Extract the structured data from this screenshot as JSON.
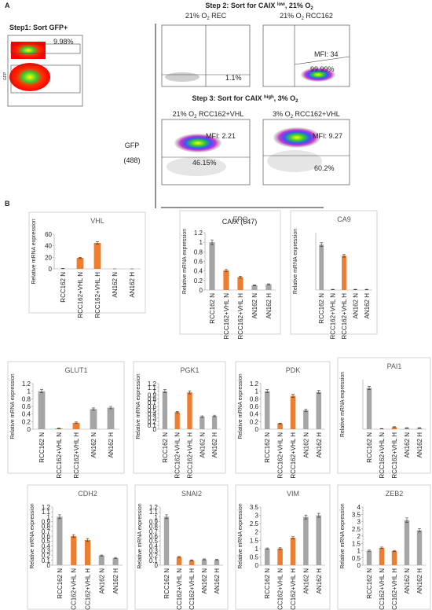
{
  "panel_a": {
    "label": "A",
    "step1": "Step1: Sort GFP+",
    "step1_pct": "9.98%",
    "step1_axis": "GFP",
    "step2": [
      "Step 2: Sort for CAIX ",
      "low",
      ", 21% O",
      "2"
    ],
    "plot1_title": [
      "21% O",
      "2",
      " REC"
    ],
    "plot1_pct": "1.1%",
    "plot2_title": [
      "21% O",
      "2",
      " RCC162"
    ],
    "plot2_mfi": "MFI: 34",
    "plot2_pct": "99.99%",
    "step3": [
      "Step 3: Sort for CAIX ",
      "high",
      ", 3% O",
      "2"
    ],
    "plot3_title": [
      "21% O",
      "2",
      " RCC162+VHL"
    ],
    "plot3_mfi": "MFI: 2.21",
    "plot3_pct": "46.15%",
    "plot4_title": [
      "3% O",
      "2",
      " RCC162+VHL"
    ],
    "plot4_mfi": "MFI: 9.27",
    "plot4_pct": "60.2%",
    "y_label": "GFP",
    "y_label_unit": "(488)",
    "x_label": "CAIX (647)"
  },
  "panel_b_label": "B",
  "chart_data": [
    {
      "type": "bar",
      "title": "VHL",
      "y_label": "Relative mRNA expression",
      "categories": [
        "RCC162 N",
        "RCC162+VHL N",
        "RCC162+VHL H",
        "AN162 N",
        "AN162 H"
      ],
      "values": [
        0.5,
        19,
        45,
        0,
        0
      ],
      "errors": [
        0.3,
        1,
        2,
        0,
        0
      ],
      "colors": [
        "#a5a5a5",
        "#ed7d31",
        "#ed7d31",
        "#a5a5a5",
        "#a5a5a5"
      ],
      "ylim": [
        0,
        60
      ],
      "yticks": [
        0,
        20,
        40,
        60
      ]
    },
    {
      "type": "bar",
      "title": "EPO",
      "y_label": "Relative mRNA expression",
      "categories": [
        "RCC162 N",
        "RCC162+VHL N",
        "RCC162+VHL H",
        "AN162 N",
        "AN162 H"
      ],
      "values": [
        1.0,
        0.41,
        0.27,
        0.1,
        0.12
      ],
      "errors": [
        0.05,
        0.02,
        0.02,
        0.01,
        0.01
      ],
      "colors": [
        "#a5a5a5",
        "#ed7d31",
        "#ed7d31",
        "#a5a5a5",
        "#a5a5a5"
      ],
      "ylim": [
        0,
        1.2
      ],
      "yticks": [
        0,
        0.2,
        0.4,
        0.6,
        0.8,
        1,
        1.2
      ]
    },
    {
      "type": "bar",
      "title": "CA9",
      "y_label": "Relative mRNA expression",
      "categories": [
        "RCC162 N",
        "RCC162+VHL N",
        "RCC162+VHL H",
        "AN162 N",
        "AN162 H"
      ],
      "values": [
        0.95,
        0.01,
        0.72,
        0.01,
        0.01
      ],
      "errors": [
        0.04,
        0.005,
        0.03,
        0.005,
        0.005
      ],
      "colors": [
        "#a5a5a5",
        "#ed7d31",
        "#ed7d31",
        "#a5a5a5",
        "#a5a5a5"
      ],
      "ylim": [
        0,
        1.2
      ]
    },
    {
      "type": "bar",
      "title": "GLUT1",
      "y_label": "Relative mRNA expression",
      "categories": [
        "RCC162 N",
        "RCC162+VHL N",
        "RCC162+VHL H",
        "AN162 N",
        "AN162 H"
      ],
      "values": [
        1.0,
        0.02,
        0.17,
        0.53,
        0.57
      ],
      "errors": [
        0.04,
        0.01,
        0.02,
        0.03,
        0.03
      ],
      "colors": [
        "#a5a5a5",
        "#ed7d31",
        "#ed7d31",
        "#a5a5a5",
        "#a5a5a5"
      ],
      "ylim": [
        0,
        1.2
      ],
      "yticks": [
        0,
        0.2,
        0.4,
        0.6,
        0.8,
        1,
        1.2
      ]
    },
    {
      "type": "bar",
      "title": "PGK1",
      "y_label": "Relative mRNA expression",
      "categories": [
        "RCC162 N",
        "RCC162+VHL N",
        "RCC162+VHL H",
        "AN162 N",
        "AN162 H"
      ],
      "values": [
        1.0,
        0.45,
        0.97,
        0.33,
        0.35
      ],
      "errors": [
        0.04,
        0.02,
        0.04,
        0.02,
        0.02
      ],
      "colors": [
        "#a5a5a5",
        "#ed7d31",
        "#ed7d31",
        "#a5a5a5",
        "#a5a5a5"
      ],
      "ylim": [
        0,
        1.2
      ],
      "yticks": [
        0,
        0.1,
        0.2,
        0.3,
        0.4,
        0.5,
        0.6,
        0.7,
        0.8,
        0.9,
        1,
        1.1,
        1.2
      ]
    },
    {
      "type": "bar",
      "title": "PDK",
      "y_label": "Relative mRNA expression",
      "categories": [
        "RCC162 N",
        "RCC162+VHL N",
        "RCC162+VHL H",
        "AN162 N",
        "AN162 H"
      ],
      "values": [
        1.0,
        0.15,
        0.88,
        0.5,
        0.98
      ],
      "errors": [
        0.04,
        0.01,
        0.04,
        0.03,
        0.04
      ],
      "colors": [
        "#a5a5a5",
        "#ed7d31",
        "#ed7d31",
        "#a5a5a5",
        "#a5a5a5"
      ],
      "ylim": [
        0,
        1.2
      ],
      "yticks": [
        0,
        0.2,
        0.4,
        0.6,
        0.8,
        1,
        1.2
      ]
    },
    {
      "type": "bar",
      "title": "PAI1",
      "y_label": "Relative mRNA expression",
      "categories": [
        "RCC162 N",
        "RCC162+VHL N",
        "RCC162+VHL H",
        "AN162 N",
        "AN162 H"
      ],
      "values": [
        1.0,
        0.01,
        0.05,
        0.03,
        0.03
      ],
      "errors": [
        0.04,
        0.005,
        0.01,
        0.005,
        0.005
      ],
      "colors": [
        "#a5a5a5",
        "#ed7d31",
        "#ed7d31",
        "#a5a5a5",
        "#a5a5a5"
      ],
      "ylim": [
        0,
        1.2
      ]
    },
    {
      "type": "bar",
      "title": "CDH2",
      "y_label": "Relative mRNA expression",
      "categories": [
        "RCC162 N",
        "RCC162+VHL N",
        "RCC162+VHL H",
        "AN162 N",
        "AN162 H"
      ],
      "values": [
        1.0,
        0.6,
        0.52,
        0.2,
        0.15
      ],
      "errors": [
        0.04,
        0.03,
        0.03,
        0.01,
        0.01
      ],
      "colors": [
        "#a5a5a5",
        "#ed7d31",
        "#ed7d31",
        "#a5a5a5",
        "#a5a5a5"
      ],
      "ylim": [
        0,
        1.2
      ],
      "yticks": [
        0,
        0.1,
        0.2,
        0.3,
        0.4,
        0.5,
        0.6,
        0.7,
        0.8,
        0.9,
        1,
        1.1,
        1.2
      ]
    },
    {
      "type": "bar",
      "title": "SNAI2",
      "y_label": "Relative mRNA expression",
      "categories": [
        "RCC162 N",
        "RCC162+VHL N",
        "RCC162+VHL H",
        "AN162 N",
        "AN162 H"
      ],
      "values": [
        1.0,
        0.17,
        0.1,
        0.12,
        0.11
      ],
      "errors": [
        0.04,
        0.01,
        0.01,
        0.01,
        0.01
      ],
      "colors": [
        "#a5a5a5",
        "#ed7d31",
        "#ed7d31",
        "#a5a5a5",
        "#a5a5a5"
      ],
      "ylim": [
        0,
        1.2
      ],
      "yticks": [
        0,
        0.1,
        0.2,
        0.3,
        0.4,
        0.5,
        0.6,
        0.7,
        0.8,
        0.9,
        1,
        1.1,
        1.2
      ]
    },
    {
      "type": "bar",
      "title": "VIM",
      "y_label": "Relative mRNA expression",
      "categories": [
        "RCC162 N",
        "RCC162+VHL N",
        "RCC162+VHL H",
        "AN162 N",
        "AN162 H"
      ],
      "values": [
        1.0,
        1.0,
        1.65,
        2.9,
        3.0
      ],
      "errors": [
        0.04,
        0.05,
        0.07,
        0.12,
        0.12
      ],
      "colors": [
        "#a5a5a5",
        "#ed7d31",
        "#ed7d31",
        "#a5a5a5",
        "#a5a5a5"
      ],
      "ylim": [
        0,
        3.5
      ],
      "yticks": [
        0,
        0.5,
        1,
        1.5,
        2,
        2.5,
        3,
        3.5
      ]
    },
    {
      "type": "bar",
      "title": "ZEB2",
      "y_label": "Relative mRNA expression",
      "categories": [
        "RCC162 N",
        "RCC162+VHL N",
        "RCC162+VHL H",
        "AN162 N",
        "AN162 H"
      ],
      "values": [
        1.0,
        1.2,
        0.98,
        3.1,
        2.4
      ],
      "errors": [
        0.04,
        0.05,
        0.04,
        0.15,
        0.12
      ],
      "colors": [
        "#a5a5a5",
        "#ed7d31",
        "#ed7d31",
        "#a5a5a5",
        "#a5a5a5"
      ],
      "ylim": [
        0,
        4
      ],
      "yticks": [
        0,
        0.5,
        1,
        1.5,
        2,
        2.5,
        3,
        3.5,
        4
      ]
    }
  ]
}
